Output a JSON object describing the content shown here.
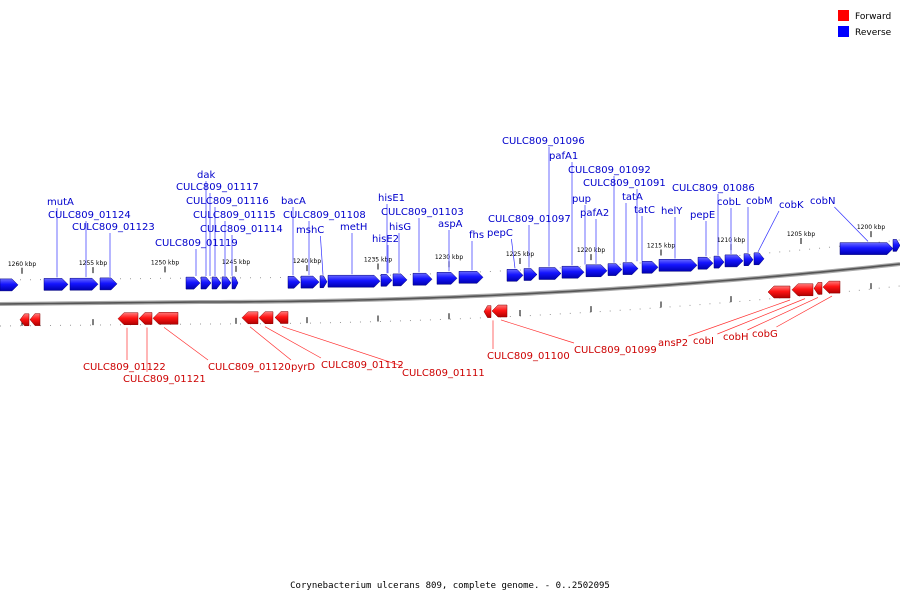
{
  "legend": {
    "forward_label": "Forward",
    "reverse_label": "Reverse",
    "forward_color": "#ff0000",
    "reverse_color": "#0000ff"
  },
  "caption": "Corynebacterium ulcerans 809, complete genome. - 0..2502095",
  "ticks": [
    "1260 kbp",
    "1255 kbp",
    "1250 kbp",
    "1245 kbp",
    "1240 kbp",
    "1235 kbp",
    "1230 kbp",
    "1225 kbp",
    "1220 kbp",
    "1215 kbp",
    "1210 kbp",
    "1205 kbp",
    "1200 kbp"
  ],
  "reverse_genes": [
    "mutA",
    "CULC809_01124",
    "CULC809_01123",
    "dak",
    "CULC809_01117",
    "CULC809_01116",
    "CULC809_01115",
    "CULC809_01114",
    "CULC809_01119",
    "bacA",
    "CULC809_01108",
    "mshC",
    "metH",
    "hisE1",
    "CULC809_01103",
    "hisG",
    "hisE2",
    "aspA",
    "fhs",
    "pepC",
    "CULC809_01096",
    "pafA1",
    "CULC809_01097",
    "CULC809_01092",
    "CULC809_01091",
    "pup",
    "pafA2",
    "tatA",
    "tatC",
    "helY",
    "CULC809_01086",
    "pepE",
    "cobL",
    "cobM",
    "cobK",
    "cobN"
  ],
  "forward_genes": [
    "CULC809_01122",
    "CULC809_01121",
    "CULC809_01120",
    "pyrD",
    "CULC809_01112",
    "CULC809_01111",
    "CULC809_01100",
    "CULC809_01099",
    "ansP2",
    "cobI",
    "cobH",
    "cobG"
  ]
}
